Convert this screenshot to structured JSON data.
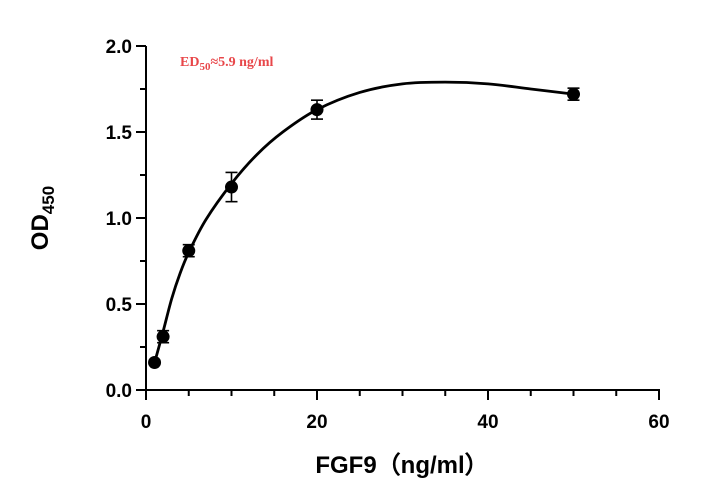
{
  "chart_data": {
    "type": "scatter",
    "title": "",
    "xlabel": "FGF9（ng/ml）",
    "ylabel_main": "OD",
    "ylabel_sub": "450",
    "xlim": [
      0,
      60
    ],
    "ylim": [
      0,
      2.0
    ],
    "x_ticks": [
      "0",
      "20",
      "40",
      "60"
    ],
    "y_ticks": [
      "0.0",
      "0.5",
      "1.0",
      "1.5",
      "2.0"
    ],
    "grid": false,
    "annotation": {
      "prefix": "ED",
      "sub": "50",
      "suffix": "≈5.9 ng/ml",
      "color": "#e8474a"
    },
    "series": [
      {
        "x": [
          1,
          2,
          5,
          10,
          20,
          50
        ],
        "y": [
          0.16,
          0.31,
          0.81,
          1.18,
          1.63,
          1.72
        ],
        "error": [
          0.01,
          0.035,
          0.035,
          0.085,
          0.055,
          0.035
        ],
        "color": "#000000"
      }
    ],
    "fit_curve": {
      "x": [
        0.8,
        1,
        2,
        3,
        4,
        5,
        7,
        10,
        13,
        16,
        20,
        25,
        30,
        35,
        40,
        45,
        50
      ],
      "y": [
        0.14,
        0.16,
        0.34,
        0.53,
        0.68,
        0.8,
        0.99,
        1.2,
        1.37,
        1.5,
        1.63,
        1.73,
        1.78,
        1.79,
        1.78,
        1.75,
        1.72
      ]
    }
  }
}
